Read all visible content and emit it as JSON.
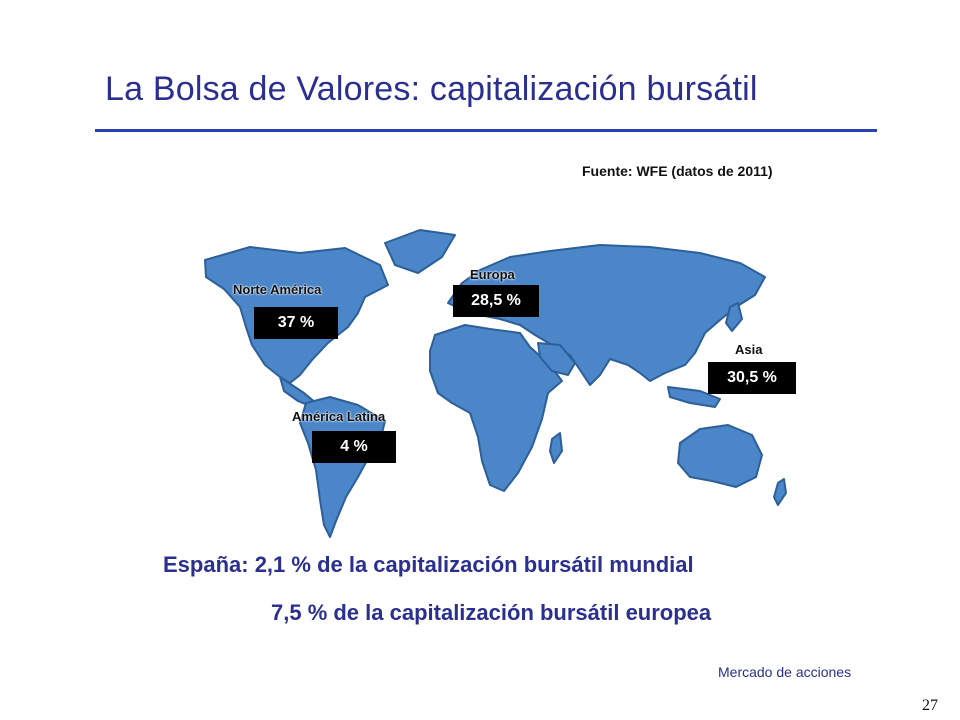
{
  "slide": {
    "title": "La Bolsa de Valores: capitalización bursátil",
    "source": "Fuente: WFE (datos de 2011)",
    "footer": "Mercado de acciones",
    "page_number": "27"
  },
  "map": {
    "land_color": "#4a86c8",
    "outline_color": "#2d5f98",
    "regions": [
      {
        "name": "Norte América",
        "share": "37 %"
      },
      {
        "name": "Europa",
        "share": "28,5 %"
      },
      {
        "name": "Asia",
        "share": "30,5 %"
      },
      {
        "name": "América Latina",
        "share": "4 %"
      }
    ]
  },
  "summary": {
    "line1": "España: 2,1 % de la capitalización bursátil mundial",
    "line2": "7,5 % de la capitalización bursátil europea"
  },
  "colors": {
    "title": "#2b2f8f",
    "rule": "#2840b0",
    "label_box": "#000000"
  }
}
